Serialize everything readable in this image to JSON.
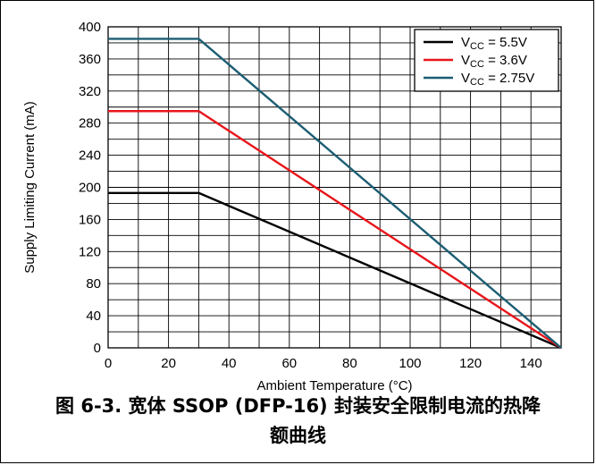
{
  "chart_data": {
    "type": "line",
    "xlabel": "Ambient Temperature (°C)",
    "ylabel": "Supply Limiting Current (mA)",
    "xlim": [
      0,
      150
    ],
    "ylim": [
      0,
      400
    ],
    "x_ticks": [
      0,
      20,
      40,
      60,
      80,
      100,
      120,
      140
    ],
    "y_ticks": [
      0,
      40,
      80,
      120,
      160,
      200,
      240,
      280,
      320,
      360,
      400
    ],
    "grid": true,
    "legend_position": "top-right",
    "series": [
      {
        "name": "V_CC = 5.5V",
        "name_main": "V",
        "name_sub": "CC",
        "name_rest": " = 5.5V",
        "color": "#000000",
        "points": [
          [
            0,
            193
          ],
          [
            30,
            193
          ],
          [
            150,
            0
          ]
        ]
      },
      {
        "name": "V_CC = 3.6V",
        "name_main": "V",
        "name_sub": "CC",
        "name_rest": " = 3.6V",
        "color": "#e8161b",
        "points": [
          [
            0,
            295
          ],
          [
            30,
            295
          ],
          [
            150,
            0
          ]
        ]
      },
      {
        "name": "V_CC = 2.75V",
        "name_main": "V",
        "name_sub": "CC",
        "name_rest": " = 2.75V",
        "color": "#1c5d73",
        "points": [
          [
            0,
            385
          ],
          [
            30,
            385
          ],
          [
            150,
            0
          ]
        ]
      }
    ]
  },
  "caption": {
    "line1": "图 6-3. 宽体 SSOP (DFP-16) 封装安全限制电流的热降",
    "line2": "额曲线"
  }
}
